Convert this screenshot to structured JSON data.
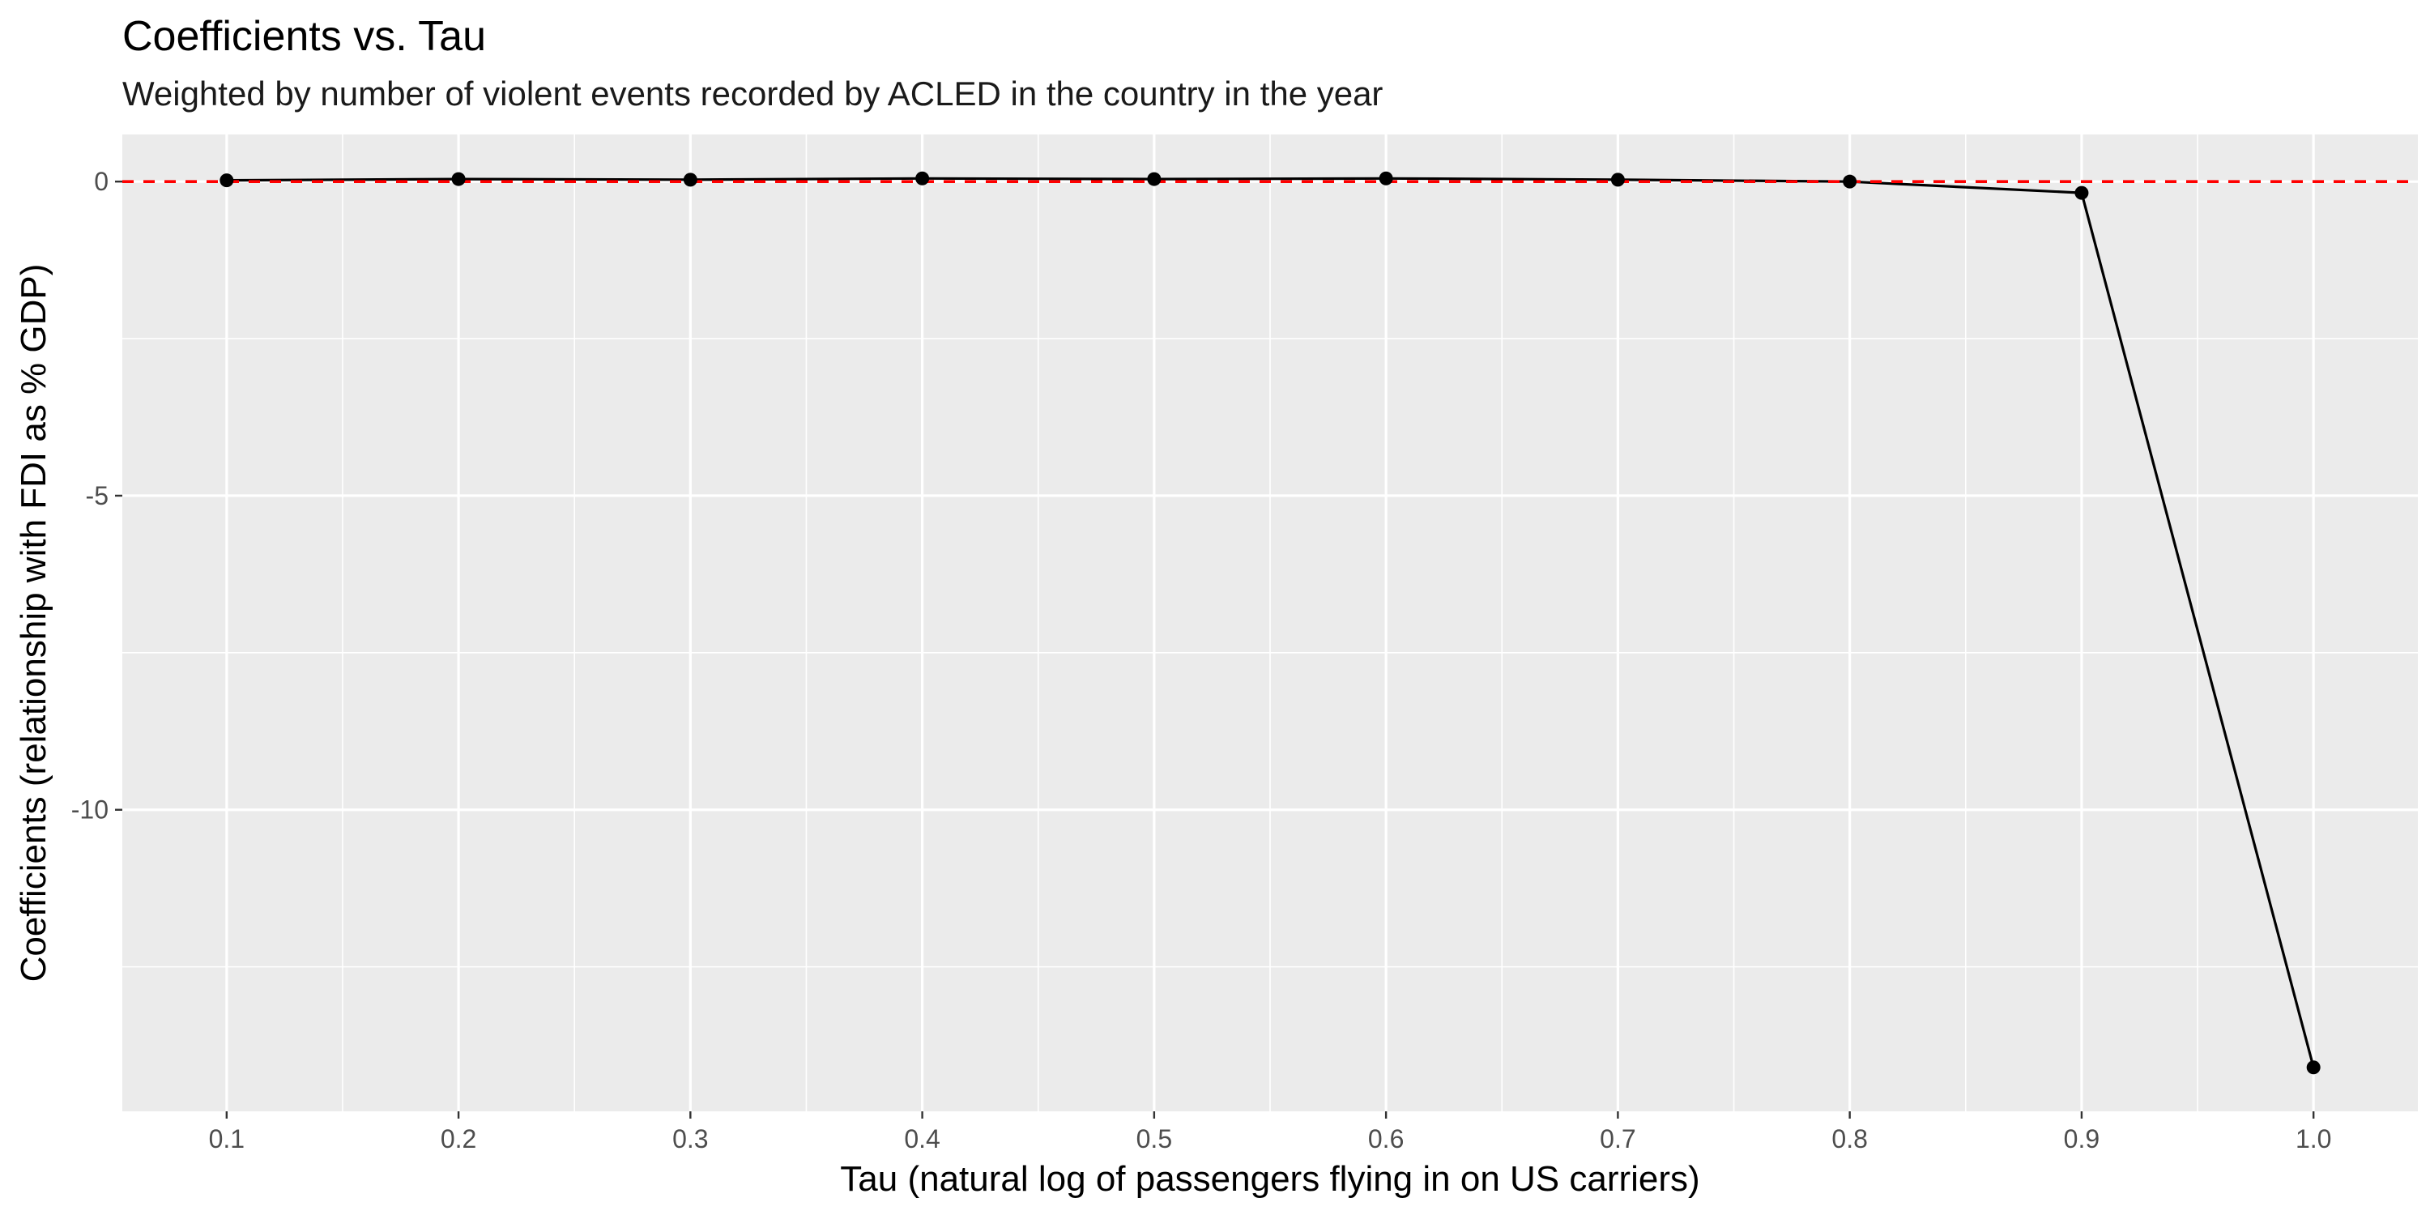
{
  "chart_data": {
    "type": "line",
    "title": "Coefficients vs. Tau",
    "subtitle": "Weighted by number of violent events recorded by ACLED in the country in the year",
    "xlabel": "Tau (natural log of passengers flying in on US carriers)",
    "ylabel": "Coefficients (relationship with FDI as % GDP)",
    "x": [
      0.1,
      0.2,
      0.3,
      0.4,
      0.5,
      0.6,
      0.7,
      0.8,
      0.9,
      1.0
    ],
    "series": [
      {
        "values": [
          0.02,
          0.04,
          0.03,
          0.05,
          0.04,
          0.05,
          0.03,
          0.0,
          -0.18,
          -14.1
        ],
        "color": "#000000"
      }
    ],
    "x_ticks": [
      0.1,
      0.2,
      0.3,
      0.4,
      0.5,
      0.6,
      0.7,
      0.8,
      0.9,
      1.0
    ],
    "x_tick_labels": [
      "0.1",
      "0.2",
      "0.3",
      "0.4",
      "0.5",
      "0.6",
      "0.7",
      "0.8",
      "0.9",
      "1.0"
    ],
    "y_ticks": [
      0,
      -5,
      -10
    ],
    "y_tick_labels": [
      "0",
      "-5",
      "-10"
    ],
    "xlim": [
      0.055,
      1.045
    ],
    "ylim": [
      -14.8,
      0.75
    ],
    "reference_line": {
      "y": 0,
      "color": "#ff0000",
      "style": "dashed"
    },
    "panel_background": "#ebebeb",
    "grid_color": "#ffffff",
    "grid": true,
    "legend": "none"
  }
}
